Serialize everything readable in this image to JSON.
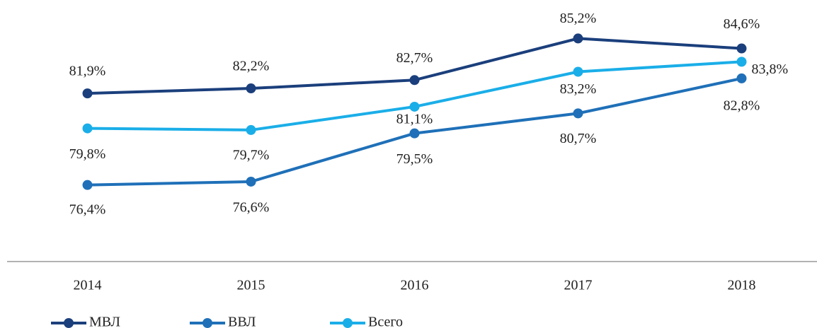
{
  "chart_data": {
    "type": "line",
    "categories": [
      "2014",
      "2015",
      "2016",
      "2017",
      "2018"
    ],
    "series": [
      {
        "name": "МВЛ",
        "color": "#1b3f7c",
        "values": [
          81.9,
          82.2,
          82.7,
          85.2,
          84.6
        ],
        "value_labels": [
          "81,9%",
          "82,2%",
          "82,7%",
          "85,2%",
          "84,6%"
        ]
      },
      {
        "name": "ВВЛ",
        "color": "#1f70b8",
        "values": [
          76.4,
          76.6,
          79.5,
          80.7,
          82.8
        ],
        "value_labels": [
          "76,4%",
          "76,6%",
          "79,5%",
          "80,7%",
          "82,8%"
        ]
      },
      {
        "name": "Всего",
        "color": "#1aaee8",
        "values": [
          79.8,
          79.7,
          81.1,
          83.2,
          83.8
        ],
        "value_labels": [
          "79,8%",
          "79,7%",
          "81,1%",
          "83,2%",
          "83,8%"
        ]
      }
    ],
    "ylim": [
      71.8,
      87
    ]
  }
}
